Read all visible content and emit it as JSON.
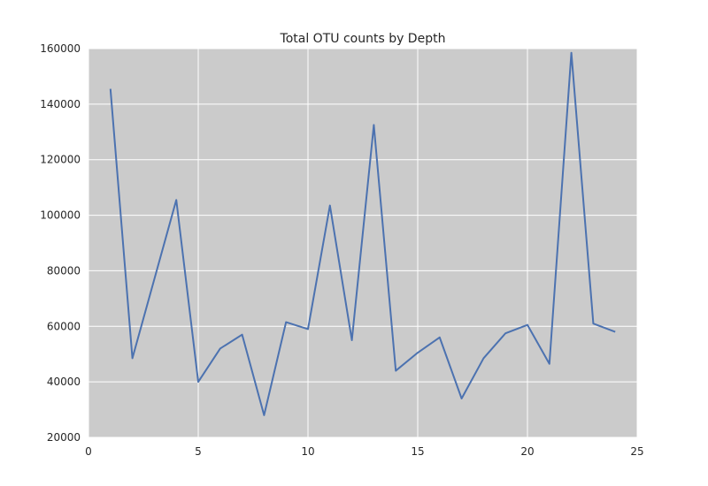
{
  "chart_data": {
    "type": "line",
    "title": "Total OTU counts by Depth",
    "xlabel": "",
    "ylabel": "",
    "xlim": [
      0,
      25
    ],
    "ylim": [
      20000,
      160000
    ],
    "x_ticks": [
      0,
      5,
      10,
      15,
      20,
      25
    ],
    "y_ticks": [
      20000,
      40000,
      60000,
      80000,
      100000,
      120000,
      140000,
      160000
    ],
    "grid": true,
    "background": "#cbcbcb",
    "grid_color": "#ffffff",
    "series": [
      {
        "color": "#4c72b0",
        "x": [
          1,
          2,
          3,
          4,
          5,
          6,
          7,
          8,
          9,
          10,
          11,
          12,
          13,
          14,
          15,
          16,
          17,
          18,
          19,
          20,
          21,
          22,
          23,
          24
        ],
        "y": [
          145500,
          48500,
          77000,
          105500,
          40000,
          52000,
          57000,
          28000,
          61500,
          59000,
          103500,
          55000,
          132500,
          44000,
          50500,
          56000,
          34000,
          48500,
          57500,
          60500,
          46500,
          158500,
          61000,
          58000
        ]
      }
    ]
  }
}
